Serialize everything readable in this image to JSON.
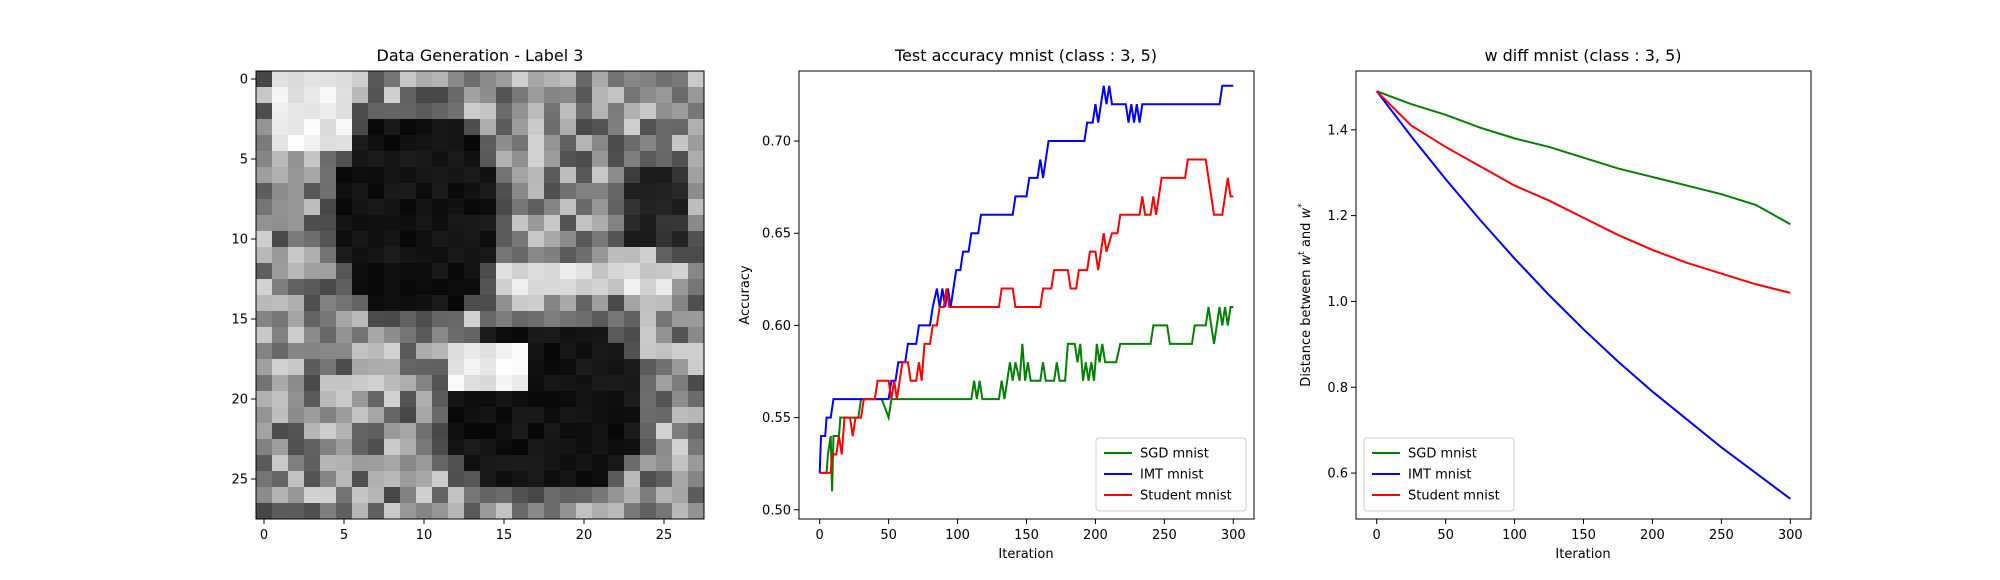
{
  "chart_data": [
    {
      "type": "heatmap",
      "title": "Data Generation - Label 3",
      "colormap": "gray",
      "xlim": [
        -0.5,
        27.5
      ],
      "ylim": [
        27.5,
        -0.5
      ],
      "xticks": [
        0,
        5,
        10,
        15,
        20,
        25
      ],
      "yticks": [
        0,
        5,
        10,
        15,
        20,
        25
      ],
      "grid": false
    },
    {
      "type": "line",
      "title": "Test accuracy mnist (class : 3, 5)",
      "xlabel": "Iteration",
      "ylabel": "Accuracy",
      "xlim": [
        -15,
        315
      ],
      "ylim": [
        0.495,
        0.738
      ],
      "xticks": [
        0,
        50,
        100,
        150,
        200,
        250,
        300
      ],
      "yticks": [
        0.5,
        0.55,
        0.6,
        0.65,
        0.7
      ],
      "ytick_labels": [
        "0.50",
        "0.55",
        "0.60",
        "0.65",
        "0.70"
      ],
      "legend": "lower-right",
      "grid": false,
      "series": [
        {
          "name": "SGD mnist",
          "color": "#008000",
          "points": [
            [
              0,
              0.52
            ],
            [
              5,
              0.52
            ],
            [
              6,
              0.53
            ],
            [
              8,
              0.54
            ],
            [
              9,
              0.51
            ],
            [
              10,
              0.54
            ],
            [
              14,
              0.54
            ],
            [
              15,
              0.55
            ],
            [
              20,
              0.55
            ],
            [
              22,
              0.55
            ],
            [
              28,
              0.55
            ],
            [
              30,
              0.56
            ],
            [
              45,
              0.56
            ],
            [
              50,
              0.55
            ],
            [
              52,
              0.56
            ],
            [
              110,
              0.56
            ],
            [
              112,
              0.57
            ],
            [
              114,
              0.56
            ],
            [
              116,
              0.57
            ],
            [
              118,
              0.56
            ],
            [
              130,
              0.56
            ],
            [
              132,
              0.57
            ],
            [
              134,
              0.56
            ],
            [
              138,
              0.58
            ],
            [
              140,
              0.57
            ],
            [
              142,
              0.58
            ],
            [
              145,
              0.57
            ],
            [
              147,
              0.59
            ],
            [
              149,
              0.57
            ],
            [
              151,
              0.58
            ],
            [
              153,
              0.57
            ],
            [
              160,
              0.57
            ],
            [
              162,
              0.58
            ],
            [
              164,
              0.57
            ],
            [
              170,
              0.57
            ],
            [
              172,
              0.58
            ],
            [
              174,
              0.57
            ],
            [
              178,
              0.57
            ],
            [
              180,
              0.59
            ],
            [
              185,
              0.59
            ],
            [
              187,
              0.58
            ],
            [
              189,
              0.59
            ],
            [
              191,
              0.57
            ],
            [
              193,
              0.58
            ],
            [
              195,
              0.57
            ],
            [
              197,
              0.58
            ],
            [
              199,
              0.57
            ],
            [
              201,
              0.59
            ],
            [
              203,
              0.58
            ],
            [
              205,
              0.59
            ],
            [
              207,
              0.58
            ],
            [
              215,
              0.58
            ],
            [
              218,
              0.59
            ],
            [
              240,
              0.59
            ],
            [
              242,
              0.6
            ],
            [
              252,
              0.6
            ],
            [
              254,
              0.59
            ],
            [
              270,
              0.59
            ],
            [
              272,
              0.6
            ],
            [
              280,
              0.6
            ],
            [
              282,
              0.61
            ],
            [
              284,
              0.6
            ],
            [
              286,
              0.59
            ],
            [
              288,
              0.6
            ],
            [
              290,
              0.61
            ],
            [
              292,
              0.6
            ],
            [
              294,
              0.61
            ],
            [
              296,
              0.6
            ],
            [
              298,
              0.61
            ],
            [
              300,
              0.61
            ]
          ]
        },
        {
          "name": "IMT mnist",
          "color": "#0000ff",
          "points": [
            [
              0,
              0.52
            ],
            [
              1,
              0.54
            ],
            [
              4,
              0.54
            ],
            [
              5,
              0.55
            ],
            [
              8,
              0.55
            ],
            [
              10,
              0.56
            ],
            [
              50,
              0.56
            ],
            [
              52,
              0.57
            ],
            [
              55,
              0.57
            ],
            [
              57,
              0.58
            ],
            [
              62,
              0.58
            ],
            [
              64,
              0.59
            ],
            [
              70,
              0.59
            ],
            [
              72,
              0.6
            ],
            [
              80,
              0.6
            ],
            [
              82,
              0.61
            ],
            [
              85,
              0.62
            ],
            [
              87,
              0.61
            ],
            [
              89,
              0.62
            ],
            [
              91,
              0.61
            ],
            [
              93,
              0.62
            ],
            [
              95,
              0.61
            ],
            [
              97,
              0.62
            ],
            [
              99,
              0.63
            ],
            [
              102,
              0.63
            ],
            [
              104,
              0.64
            ],
            [
              108,
              0.64
            ],
            [
              110,
              0.65
            ],
            [
              115,
              0.65
            ],
            [
              117,
              0.66
            ],
            [
              140,
              0.66
            ],
            [
              142,
              0.67
            ],
            [
              150,
              0.67
            ],
            [
              152,
              0.68
            ],
            [
              158,
              0.68
            ],
            [
              160,
              0.69
            ],
            [
              162,
              0.68
            ],
            [
              164,
              0.69
            ],
            [
              166,
              0.7
            ],
            [
              192,
              0.7
            ],
            [
              194,
              0.71
            ],
            [
              198,
              0.71
            ],
            [
              200,
              0.72
            ],
            [
              202,
              0.71
            ],
            [
              204,
              0.72
            ],
            [
              206,
              0.73
            ],
            [
              208,
              0.72
            ],
            [
              210,
              0.73
            ],
            [
              212,
              0.72
            ],
            [
              222,
              0.72
            ],
            [
              224,
              0.71
            ],
            [
              226,
              0.72
            ],
            [
              228,
              0.71
            ],
            [
              230,
              0.72
            ],
            [
              232,
              0.71
            ],
            [
              234,
              0.72
            ],
            [
              290,
              0.72
            ],
            [
              292,
              0.73
            ],
            [
              300,
              0.73
            ]
          ]
        },
        {
          "name": "Student mnist",
          "color": "#ff0000",
          "points": [
            [
              0,
              0.52
            ],
            [
              8,
              0.52
            ],
            [
              9,
              0.53
            ],
            [
              12,
              0.53
            ],
            [
              14,
              0.54
            ],
            [
              16,
              0.53
            ],
            [
              18,
              0.55
            ],
            [
              22,
              0.55
            ],
            [
              24,
              0.54
            ],
            [
              26,
              0.55
            ],
            [
              30,
              0.55
            ],
            [
              32,
              0.56
            ],
            [
              40,
              0.56
            ],
            [
              42,
              0.57
            ],
            [
              50,
              0.57
            ],
            [
              52,
              0.56
            ],
            [
              54,
              0.57
            ],
            [
              56,
              0.56
            ],
            [
              58,
              0.57
            ],
            [
              60,
              0.58
            ],
            [
              64,
              0.58
            ],
            [
              66,
              0.57
            ],
            [
              70,
              0.57
            ],
            [
              72,
              0.58
            ],
            [
              74,
              0.57
            ],
            [
              76,
              0.59
            ],
            [
              80,
              0.59
            ],
            [
              82,
              0.6
            ],
            [
              85,
              0.6
            ],
            [
              87,
              0.61
            ],
            [
              90,
              0.61
            ],
            [
              92,
              0.62
            ],
            [
              94,
              0.61
            ],
            [
              130,
              0.61
            ],
            [
              132,
              0.62
            ],
            [
              140,
              0.62
            ],
            [
              142,
              0.61
            ],
            [
              160,
              0.61
            ],
            [
              162,
              0.62
            ],
            [
              168,
              0.62
            ],
            [
              170,
              0.63
            ],
            [
              180,
              0.63
            ],
            [
              182,
              0.62
            ],
            [
              186,
              0.62
            ],
            [
              188,
              0.63
            ],
            [
              194,
              0.63
            ],
            [
              196,
              0.64
            ],
            [
              200,
              0.64
            ],
            [
              202,
              0.63
            ],
            [
              204,
              0.64
            ],
            [
              206,
              0.65
            ],
            [
              208,
              0.64
            ],
            [
              212,
              0.65
            ],
            [
              216,
              0.65
            ],
            [
              218,
              0.66
            ],
            [
              232,
              0.66
            ],
            [
              234,
              0.67
            ],
            [
              236,
              0.66
            ],
            [
              240,
              0.66
            ],
            [
              242,
              0.67
            ],
            [
              244,
              0.66
            ],
            [
              246,
              0.67
            ],
            [
              248,
              0.68
            ],
            [
              265,
              0.68
            ],
            [
              267,
              0.69
            ],
            [
              280,
              0.69
            ],
            [
              282,
              0.68
            ],
            [
              284,
              0.67
            ],
            [
              286,
              0.66
            ],
            [
              292,
              0.66
            ],
            [
              294,
              0.67
            ],
            [
              296,
              0.68
            ],
            [
              298,
              0.67
            ],
            [
              300,
              0.67
            ]
          ]
        }
      ]
    },
    {
      "type": "line",
      "title": "w diff mnist (class : 3, 5)",
      "xlabel": "Iteration",
      "ylabel": "Distance between w^t and w^*",
      "ylabel_parts": [
        "Distance between ",
        "w",
        "t",
        " and ",
        "w",
        "*"
      ],
      "xlim": [
        -15,
        315
      ],
      "ylim": [
        0.493,
        1.537
      ],
      "xticks": [
        0,
        50,
        100,
        150,
        200,
        250,
        300
      ],
      "yticks": [
        0.6,
        0.8,
        1.0,
        1.2,
        1.4
      ],
      "ytick_labels": [
        "0.6",
        "0.8",
        "1.0",
        "1.2",
        "1.4"
      ],
      "legend": "lower-left",
      "grid": false,
      "series": [
        {
          "name": "SGD mnist",
          "color": "#008000",
          "points": [
            [
              0,
              1.49
            ],
            [
              25,
              1.46
            ],
            [
              50,
              1.435
            ],
            [
              75,
              1.405
            ],
            [
              100,
              1.38
            ],
            [
              125,
              1.36
            ],
            [
              150,
              1.335
            ],
            [
              175,
              1.31
            ],
            [
              200,
              1.29
            ],
            [
              225,
              1.27
            ],
            [
              250,
              1.25
            ],
            [
              275,
              1.225
            ],
            [
              300,
              1.18
            ]
          ]
        },
        {
          "name": "IMT mnist",
          "color": "#0000ff",
          "points": [
            [
              0,
              1.49
            ],
            [
              25,
              1.385
            ],
            [
              50,
              1.285
            ],
            [
              75,
              1.19
            ],
            [
              100,
              1.1
            ],
            [
              125,
              1.015
            ],
            [
              150,
              0.935
            ],
            [
              175,
              0.86
            ],
            [
              200,
              0.79
            ],
            [
              225,
              0.725
            ],
            [
              250,
              0.66
            ],
            [
              275,
              0.6
            ],
            [
              300,
              0.54
            ]
          ]
        },
        {
          "name": "Student mnist",
          "color": "#ff0000",
          "points": [
            [
              0,
              1.49
            ],
            [
              25,
              1.41
            ],
            [
              50,
              1.36
            ],
            [
              75,
              1.315
            ],
            [
              100,
              1.27
            ],
            [
              125,
              1.235
            ],
            [
              150,
              1.195
            ],
            [
              175,
              1.155
            ],
            [
              200,
              1.12
            ],
            [
              225,
              1.09
            ],
            [
              250,
              1.065
            ],
            [
              275,
              1.04
            ],
            [
              300,
              1.02
            ]
          ]
        }
      ]
    }
  ]
}
